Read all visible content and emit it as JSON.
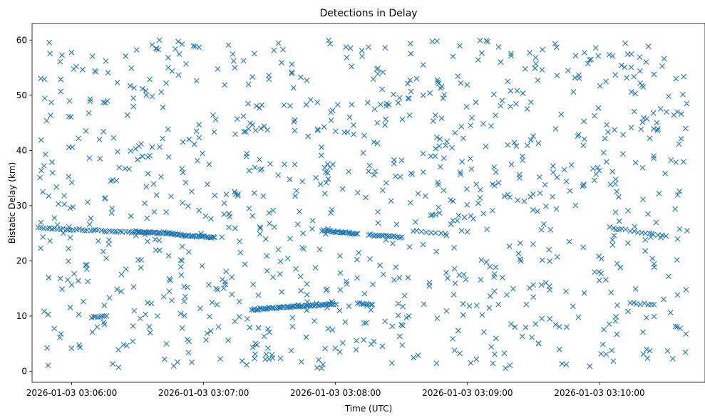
{
  "chart_data": {
    "type": "scatter",
    "title": "Detections in Delay",
    "xlabel": "Time (UTC)",
    "ylabel": "Bistatic Delay (km)",
    "marker": "x",
    "color": "#1f77b4",
    "grid": false,
    "legend": "none",
    "xlim": [
      "2026-01-03 03:05:42",
      "2026-01-03 03:10:48"
    ],
    "ylim": [
      -2,
      63
    ],
    "x_ticks": [
      "2026-01-03 03:06:00",
      "2026-01-03 03:07:00",
      "2026-01-03 03:08:00",
      "2026-01-03 03:09:00",
      "2026-01-03 03:10:00"
    ],
    "y_ticks": [
      0,
      10,
      20,
      30,
      40,
      50,
      60
    ],
    "clutter": {
      "time_range": [
        "2026-01-03 03:05:45",
        "2026-01-03 03:10:40"
      ],
      "delay_range": [
        0.5,
        60
      ],
      "count": 1000
    },
    "tracks": [
      {
        "start": "2026-01-03 03:05:45",
        "end": "2026-01-03 03:06:27",
        "delay_start": 26.0,
        "delay_end": 25.2,
        "count": 35
      },
      {
        "start": "2026-01-03 03:06:28",
        "end": "2026-01-03 03:06:46",
        "delay_start": 25.3,
        "delay_end": 25.0,
        "count": 30
      },
      {
        "start": "2026-01-03 03:06:46",
        "end": "2026-01-03 03:07:05",
        "delay_start": 24.8,
        "delay_end": 24.2,
        "count": 30
      },
      {
        "start": "2026-01-03 03:07:54",
        "end": "2026-01-03 03:08:10",
        "delay_start": 25.5,
        "delay_end": 24.9,
        "count": 25
      },
      {
        "start": "2026-01-03 03:08:15",
        "end": "2026-01-03 03:08:30",
        "delay_start": 24.7,
        "delay_end": 24.3,
        "count": 18
      },
      {
        "start": "2026-01-03 03:07:22",
        "end": "2026-01-03 03:08:00",
        "delay_start": 11.2,
        "delay_end": 12.2,
        "count": 60
      },
      {
        "start": "2026-01-03 03:08:10",
        "end": "2026-01-03 03:08:17",
        "delay_start": 12.3,
        "delay_end": 12.0,
        "count": 8
      },
      {
        "start": "2026-01-03 03:06:09",
        "end": "2026-01-03 03:06:16",
        "delay_start": 9.8,
        "delay_end": 10.0,
        "count": 8
      },
      {
        "start": "2026-01-03 03:08:35",
        "end": "2026-01-03 03:08:50",
        "delay_start": 25.5,
        "delay_end": 25.0,
        "count": 8
      },
      {
        "start": "2026-01-03 03:10:05",
        "end": "2026-01-03 03:10:30",
        "delay_start": 26.0,
        "delay_end": 24.5,
        "count": 15
      },
      {
        "start": "2026-01-03 03:10:14",
        "end": "2026-01-03 03:10:25",
        "delay_start": 12.3,
        "delay_end": 12.1,
        "count": 8
      }
    ]
  }
}
